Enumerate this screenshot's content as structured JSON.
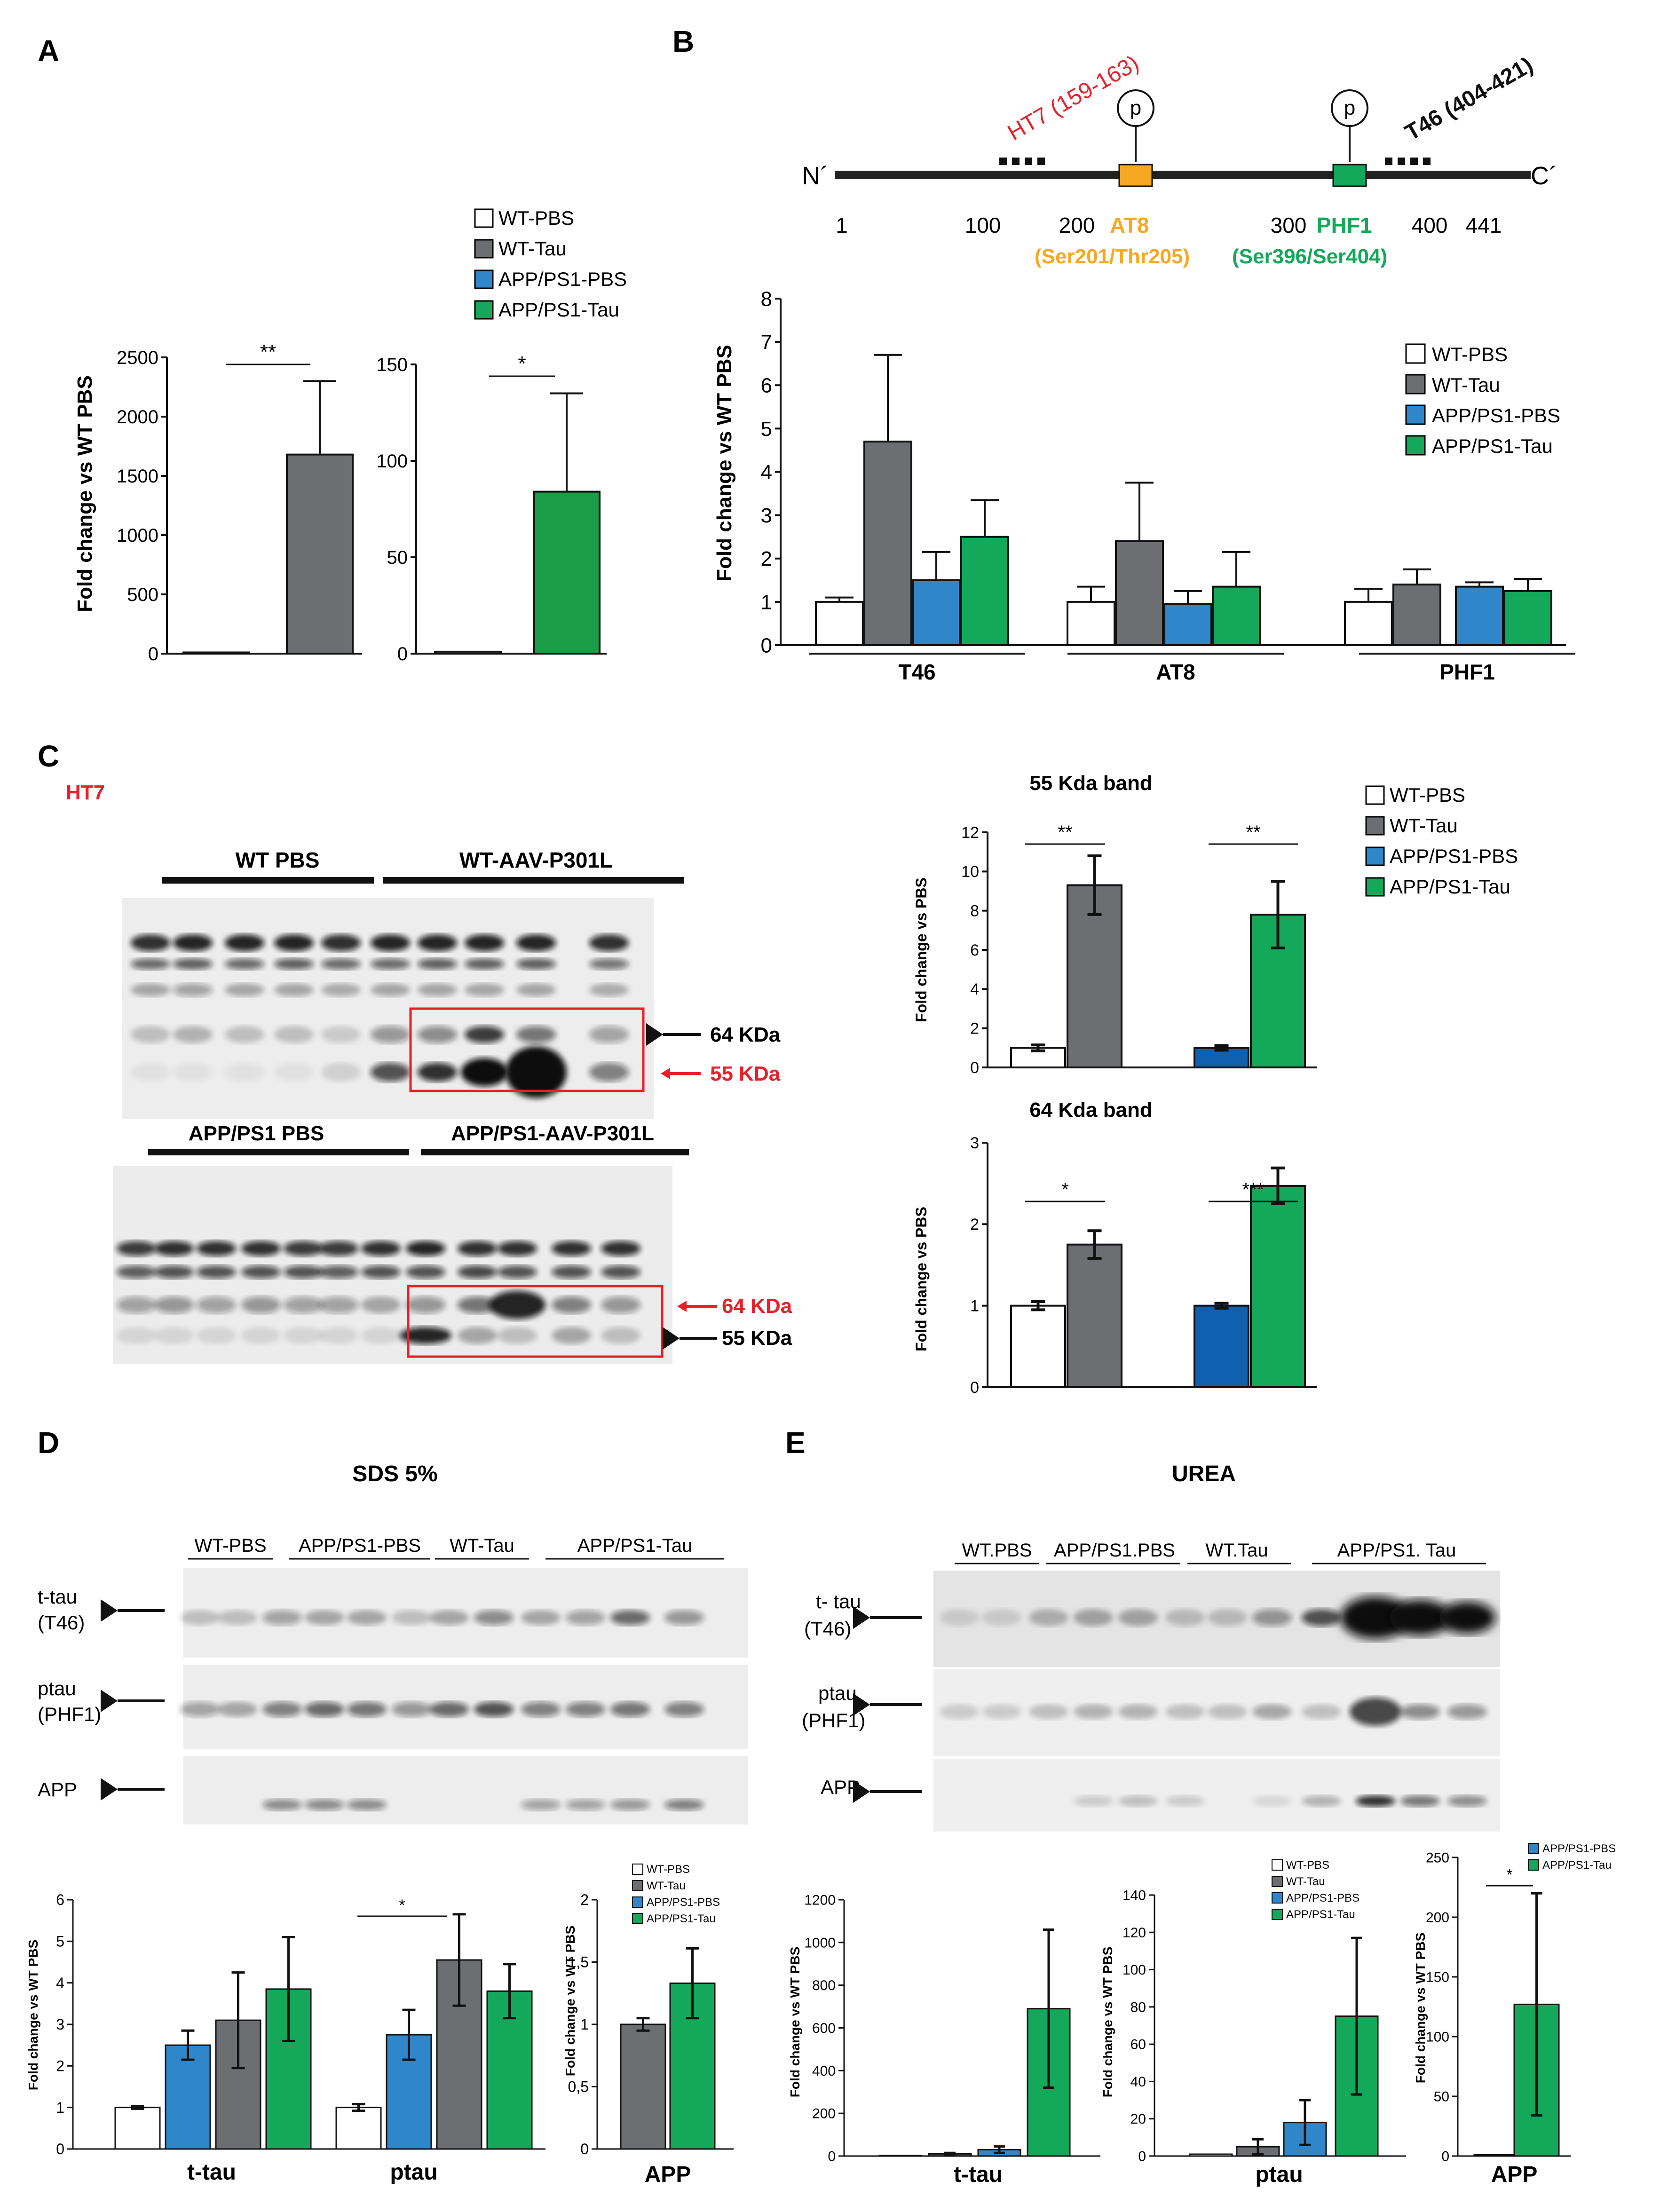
{
  "colors": {
    "wt_pbs": "#ffffff",
    "wt_tau": "#6d6e71",
    "app_pbs": "#2f86c9",
    "app_tau": "#14a85a",
    "app_pbs_dark": "#1060b0",
    "orange": "#f7a823",
    "green": "#14a85a",
    "red": "#e8202a",
    "red_box": "#e8202a"
  },
  "panels": {
    "A": "A",
    "B": "B",
    "C": "C",
    "D": "D",
    "E": "E"
  },
  "legend": {
    "wt_pbs": "WT-PBS",
    "wt_tau": "WT-Tau",
    "app_pbs": "APP/PS1-PBS",
    "app_tau": "APP/PS1-Tau"
  },
  "panelA": {
    "ylabel": "Fold change vs WT PBS",
    "left": {
      "yticks": [
        "0",
        "500",
        "1000",
        "1500",
        "2000",
        "2500"
      ],
      "sig": "**"
    },
    "right": {
      "yticks": [
        "0",
        "50",
        "100",
        "150"
      ],
      "sig": "*"
    }
  },
  "panelB": {
    "terminal_n": "N´",
    "terminal_c": "C´",
    "ht7": "HT7 (159-163)",
    "t46": "T46 (404-421)",
    "p1": "p",
    "p2": "p",
    "positions": [
      "1",
      "100",
      "200",
      "300",
      "400",
      "441"
    ],
    "at8": "AT8",
    "at8_site": "(Ser201/Thr205)",
    "phf1": "PHF1",
    "phf1_site": "(Ser396/Ser404)",
    "ylabel": "Fold change vs WT PBS",
    "yticks": [
      "0",
      "1",
      "2",
      "3",
      "4",
      "5",
      "6",
      "7",
      "8"
    ],
    "groups": [
      "T46",
      "AT8",
      "PHF1"
    ]
  },
  "panelC": {
    "ht7": "HT7",
    "blot1_groups": [
      "WT PBS",
      "WT-AAV-P301L"
    ],
    "blot2_groups": [
      "APP/PS1 PBS",
      "APP/PS1-AAV-P301L"
    ],
    "kda64": "64 KDa",
    "kda55": "55 KDa",
    "kda64b": "64 KDa",
    "kda55b": "55 KDa",
    "chart55_title": "55 Kda band",
    "chart64_title": "64 Kda band",
    "ylabel": "Fold change vs PBS",
    "yticks55": [
      "0",
      "2",
      "4",
      "6",
      "8",
      "10",
      "12"
    ],
    "yticks64": [
      "0",
      "1",
      "2",
      "3"
    ],
    "sig55a": "**",
    "sig55b": "**",
    "sig64a": "*",
    "sig64b": "***"
  },
  "panelD": {
    "title": "SDS 5%",
    "groups": [
      "WT-PBS",
      "APP/PS1-PBS",
      "WT-Tau",
      "APP/PS1-Tau"
    ],
    "row1": "t-tau",
    "row1b": "(T46)",
    "row2": "ptau",
    "row2b": "(PHF1)",
    "row3": "APP",
    "ylabel": "Fold change vs WT PBS",
    "yticks1": [
      "0",
      "1",
      "2",
      "3",
      "4",
      "5",
      "6"
    ],
    "yticks2": [
      "0",
      "0,5",
      "1",
      "1,5",
      "2"
    ],
    "cats": [
      "t-tau",
      "ptau"
    ],
    "cat_app": "APP",
    "sig": "*"
  },
  "panelE": {
    "title": "UREA",
    "groups": [
      "WT.PBS",
      "APP/PS1.PBS",
      "WT.Tau",
      "APP/PS1. Tau"
    ],
    "row1": "t- tau",
    "row1b": "(T46)",
    "row2": "ptau",
    "row2b": "(PHF1)",
    "row3": "APP",
    "ylabel": "Fold change vs WT PBS",
    "yticks1": [
      "0",
      "200",
      "400",
      "600",
      "800",
      "1000",
      "1200"
    ],
    "yticks2": [
      "0",
      "20",
      "40",
      "60",
      "80",
      "100",
      "120",
      "140"
    ],
    "yticks3": [
      "0",
      "50",
      "100",
      "150",
      "200",
      "250"
    ],
    "cat1": "t-tau",
    "cat2": "ptau",
    "cat3": "APP",
    "sig": "*"
  },
  "chart_data": [
    {
      "type": "bar",
      "panel": "A-left",
      "ylim": [
        0,
        2500
      ],
      "series": [
        {
          "name": "WT-PBS",
          "values": [
            10
          ],
          "err": [
            0
          ]
        },
        {
          "name": "WT-Tau",
          "values": [
            1680
          ],
          "err": [
            620
          ]
        }
      ]
    },
    {
      "type": "bar",
      "panel": "A-right",
      "ylim": [
        0,
        150
      ],
      "series": [
        {
          "name": "APP/PS1-PBS",
          "values": [
            1
          ],
          "err": [
            0
          ]
        },
        {
          "name": "APP/PS1-Tau",
          "values": [
            84
          ],
          "err": [
            51
          ]
        }
      ]
    },
    {
      "type": "bar",
      "panel": "B",
      "ylim": [
        0,
        8
      ],
      "categories": [
        "T46",
        "AT8",
        "PHF1"
      ],
      "series": [
        {
          "name": "WT-PBS",
          "values": [
            1.0,
            1.0,
            1.0
          ],
          "err": [
            0.1,
            0.35,
            0.3
          ]
        },
        {
          "name": "WT-Tau",
          "values": [
            4.7,
            2.4,
            1.4
          ],
          "err": [
            2.0,
            1.35,
            0.35
          ]
        },
        {
          "name": "APP/PS1-PBS",
          "values": [
            1.5,
            0.95,
            1.35
          ],
          "err": [
            0.65,
            0.3,
            0.1
          ]
        },
        {
          "name": "APP/PS1-Tau",
          "values": [
            2.5,
            1.35,
            1.25
          ],
          "err": [
            0.85,
            0.8,
            0.28
          ]
        }
      ]
    },
    {
      "type": "bar",
      "panel": "C-55kDa",
      "ylim": [
        0,
        12
      ],
      "series": [
        {
          "name": "WT-PBS",
          "values": [
            1.0
          ],
          "err": [
            0.15
          ]
        },
        {
          "name": "WT-Tau",
          "values": [
            9.3
          ],
          "err": [
            1.5
          ]
        },
        {
          "name": "APP/PS1-PBS",
          "values": [
            1.0
          ],
          "err": [
            0.12
          ]
        },
        {
          "name": "APP/PS1-Tau",
          "values": [
            7.8
          ],
          "err": [
            1.7
          ]
        }
      ]
    },
    {
      "type": "bar",
      "panel": "C-64kDa",
      "ylim": [
        0,
        3
      ],
      "series": [
        {
          "name": "WT-PBS",
          "values": [
            1.0
          ],
          "err": [
            0.05
          ]
        },
        {
          "name": "WT-Tau",
          "values": [
            1.75
          ],
          "err": [
            0.17
          ]
        },
        {
          "name": "APP/PS1-PBS",
          "values": [
            1.0
          ],
          "err": [
            0.03
          ]
        },
        {
          "name": "APP/PS1-Tau",
          "values": [
            2.47
          ],
          "err": [
            0.22
          ]
        }
      ]
    },
    {
      "type": "bar",
      "panel": "D-tau",
      "ylim": [
        0,
        6
      ],
      "categories": [
        "t-tau",
        "ptau"
      ],
      "series": [
        {
          "name": "WT-PBS",
          "values": [
            1.0,
            1.0
          ],
          "err": [
            0.03,
            0.08
          ]
        },
        {
          "name": "APP/PS1-PBS",
          "values": [
            2.5,
            2.75
          ],
          "err": [
            0.35,
            0.6
          ]
        },
        {
          "name": "WT-Tau",
          "values": [
            3.1,
            4.55
          ],
          "err": [
            1.15,
            1.1
          ]
        },
        {
          "name": "APP/PS1-Tau",
          "values": [
            3.85,
            3.8
          ],
          "err": [
            1.25,
            0.65
          ]
        }
      ]
    },
    {
      "type": "bar",
      "panel": "D-APP",
      "ylim": [
        0,
        2
      ],
      "series": [
        {
          "name": "WT-Tau",
          "values": [
            1.0
          ],
          "err": [
            0.05
          ]
        },
        {
          "name": "APP/PS1-Tau",
          "values": [
            1.33
          ],
          "err": [
            0.28
          ]
        }
      ]
    },
    {
      "type": "bar",
      "panel": "E-ttau",
      "ylim": [
        0,
        1200
      ],
      "series": [
        {
          "name": "WT-PBS",
          "values": [
            2
          ],
          "err": [
            0
          ]
        },
        {
          "name": "WT-Tau",
          "values": [
            10
          ],
          "err": [
            5
          ]
        },
        {
          "name": "APP/PS1-PBS",
          "values": [
            30
          ],
          "err": [
            15
          ]
        },
        {
          "name": "APP/PS1-Tau",
          "values": [
            690
          ],
          "err": [
            370
          ]
        }
      ]
    },
    {
      "type": "bar",
      "panel": "E-ptau",
      "ylim": [
        0,
        140
      ],
      "series": [
        {
          "name": "WT-PBS",
          "values": [
            1
          ],
          "err": [
            0
          ]
        },
        {
          "name": "WT-Tau",
          "values": [
            5
          ],
          "err": [
            4
          ]
        },
        {
          "name": "APP/PS1-PBS",
          "values": [
            18
          ],
          "err": [
            12
          ]
        },
        {
          "name": "APP/PS1-Tau",
          "values": [
            75
          ],
          "err": [
            42
          ]
        }
      ]
    },
    {
      "type": "bar",
      "panel": "E-APP",
      "ylim": [
        0,
        250
      ],
      "series": [
        {
          "name": "APP/PS1-PBS",
          "values": [
            1
          ],
          "err": [
            0
          ]
        },
        {
          "name": "APP/PS1-Tau",
          "values": [
            127
          ],
          "err": [
            93
          ]
        }
      ]
    }
  ]
}
